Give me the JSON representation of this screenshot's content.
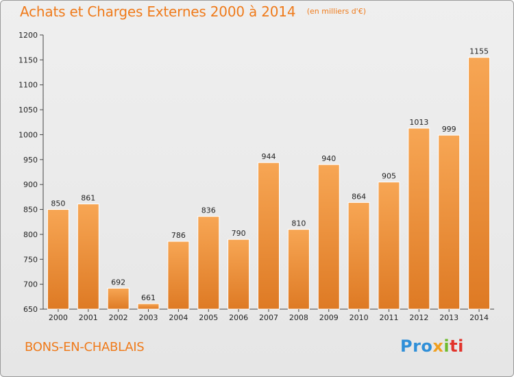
{
  "title": "Achats et Charges Externes 2000 à 2014",
  "unit": "(en milliers d'€)",
  "place": "BONS-EN-CHABLAIS",
  "brand": {
    "p1": "Pro",
    "p2": "x",
    "p3": "i",
    "p4": "ti"
  },
  "colors": {
    "bar_light": "#f7a654",
    "bar_dark": "#de7a24",
    "accent": "#ef7a1a"
  },
  "chart_data": {
    "type": "bar",
    "title": "Achats et Charges Externes 2000 à 2014",
    "subtitle": "(en milliers d'€)",
    "categories": [
      "2000",
      "2001",
      "2002",
      "2003",
      "2004",
      "2005",
      "2006",
      "2007",
      "2008",
      "2009",
      "2010",
      "2011",
      "2012",
      "2013",
      "2014"
    ],
    "values": [
      850,
      861,
      692,
      661,
      786,
      836,
      790,
      944,
      810,
      940,
      864,
      905,
      1013,
      999,
      1155
    ],
    "data_labels": [
      "850",
      "861",
      "692",
      "661",
      "786",
      "836",
      "790",
      "944",
      "810",
      "940",
      "864",
      "905",
      "1013",
      "999",
      "1155"
    ],
    "ylim": [
      650,
      1200
    ],
    "yticks": [
      650,
      700,
      750,
      800,
      850,
      900,
      950,
      1000,
      1050,
      1100,
      1150,
      1200
    ],
    "grid": false,
    "legend": "none"
  }
}
